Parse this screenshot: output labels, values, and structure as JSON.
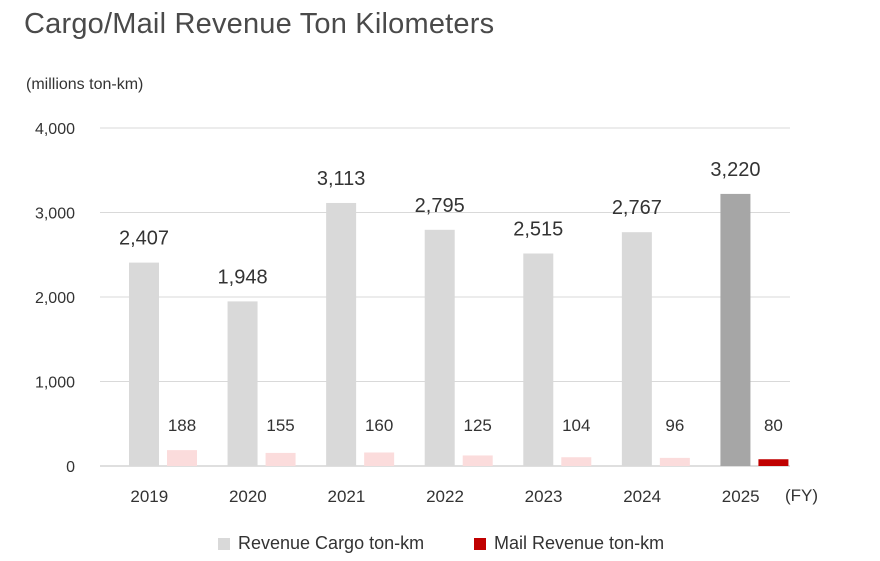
{
  "title": "Cargo/Mail Revenue Ton Kilometers",
  "unit_label": "(millions ton-km)",
  "x_unit": "(FY)",
  "chart_data": {
    "type": "bar",
    "categories": [
      "2019",
      "2020",
      "2021",
      "2022",
      "2023",
      "2024",
      "2025"
    ],
    "ylim": [
      0,
      4000
    ],
    "yticks": [
      0,
      1000,
      2000,
      3000,
      4000
    ],
    "ytick_labels": [
      "0",
      "1,000",
      "2,000",
      "3,000",
      "4,000"
    ],
    "grid": true,
    "legend_position": "bottom",
    "series": [
      {
        "name": "Revenue Cargo ton-km",
        "values": [
          2407,
          1948,
          3113,
          2795,
          2515,
          2767,
          3220
        ],
        "labels": [
          "2,407",
          "1,948",
          "3,113",
          "2,795",
          "2,515",
          "2,767",
          "3,220"
        ],
        "color": "#d9d9d9",
        "highlight_color": "#a6a6a6"
      },
      {
        "name": "Mail Revenue ton-km",
        "values": [
          188,
          155,
          160,
          125,
          104,
          96,
          80
        ],
        "labels": [
          "188",
          "155",
          "160",
          "125",
          "104",
          "96",
          "80"
        ],
        "color": "#fbdcdc",
        "highlight_color": "#c00000"
      }
    ],
    "highlight_category": "2025"
  }
}
